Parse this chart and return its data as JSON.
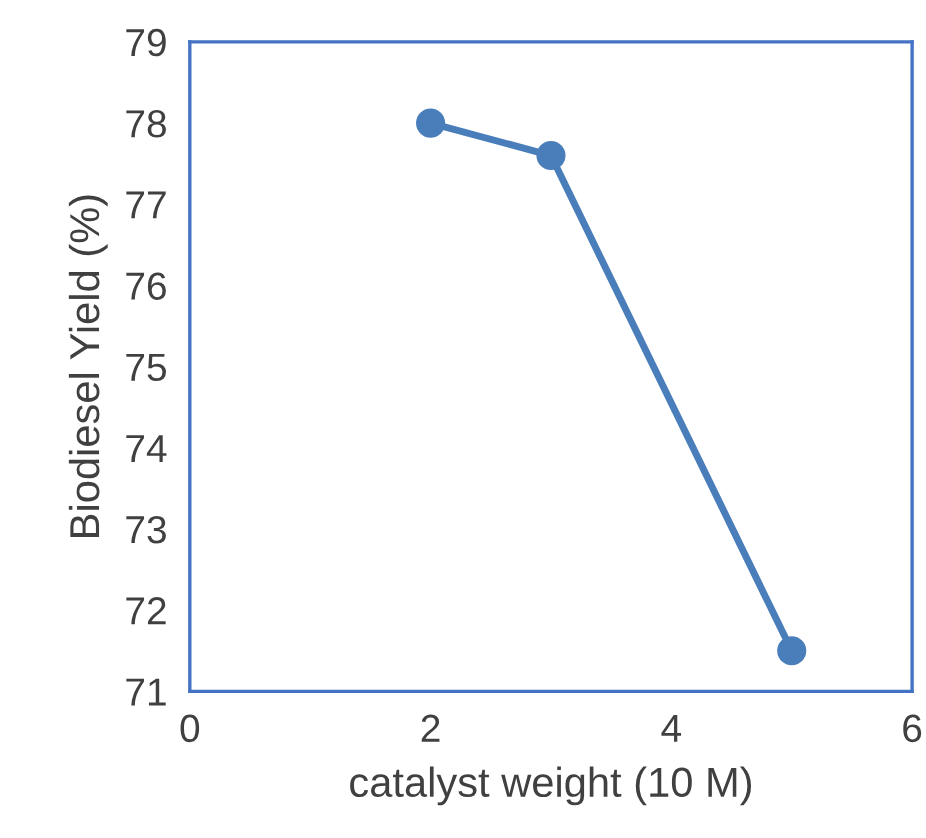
{
  "chart_data": {
    "type": "line",
    "xlabel": "catalyst weight (10 M)",
    "ylabel": "Biodiesel Yield (%)",
    "series": [
      {
        "color": "#4a7ebb",
        "x": [
          2,
          3,
          5
        ],
        "values": [
          78,
          77.6,
          71.5
        ]
      }
    ],
    "xlim": [
      0,
      6
    ],
    "xticks": [
      0,
      2,
      4,
      6
    ],
    "ylim": [
      71,
      79
    ],
    "yticks": [
      71,
      72,
      73,
      74,
      75,
      76,
      77,
      78,
      79
    ],
    "grid": false,
    "marker": "circle",
    "line_style": "solid"
  }
}
